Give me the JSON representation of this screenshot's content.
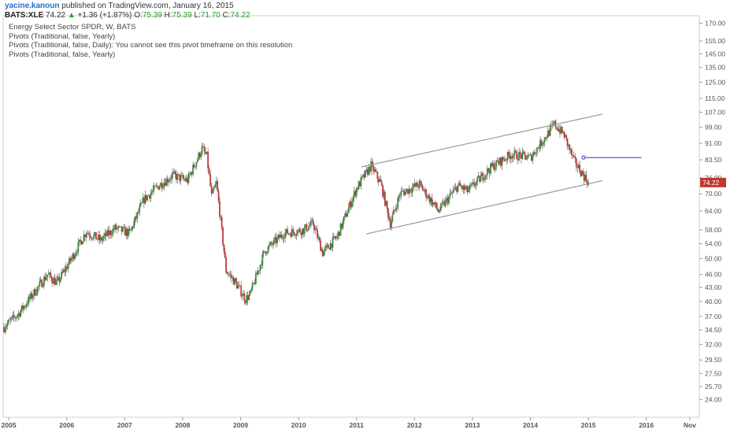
{
  "header": {
    "user": "yacine.kanoun",
    "published": "published on TradingView.com, January 16, 2015"
  },
  "ticker": {
    "symbol": "BATS:XLE",
    "last": "74.22",
    "arrow": "▲",
    "change": "+1.36 (+1.87%)",
    "o_label": "O:",
    "o_val": "75.39",
    "h_label": "H:",
    "h_val": "75.39",
    "l_label": "L:",
    "l_val": "71.70",
    "c_label": "C:",
    "c_val": "74.22"
  },
  "legend": [
    "Energy Select Sector SPDR, W, BATS",
    "Pivots (Traditional, false, Yearly)",
    "Pivots (Traditional, false, Daily): You cannot see this pivot timeframe on this resolution",
    "Pivots (Traditional, false, Yearly)"
  ],
  "colors": {
    "up": "#3d8b3d",
    "down": "#c23a3a",
    "channel": "#999999",
    "pivot": "#3333aa",
    "last_bg": "#c0392b"
  },
  "chart_data": {
    "type": "candlestick",
    "title": "Energy Select Sector SPDR, W, BATS",
    "y_scale": "log",
    "ylim": [
      23,
      171
    ],
    "y_ticks": [
      "170.00",
      "155.00",
      "145.00",
      "135.00",
      "125.00",
      "115.00",
      "107.00",
      "99.00",
      "91.00",
      "83.50",
      "76.00",
      "70.00",
      "64.00",
      "58.00",
      "54.00",
      "50.00",
      "46.00",
      "43.00",
      "40.00",
      "37.00",
      "34.50",
      "32.00",
      "29.50",
      "27.50",
      "25.70",
      "24.00"
    ],
    "x_ticks": [
      "2005",
      "2006",
      "2007",
      "2008",
      "2009",
      "2010",
      "2011",
      "2012",
      "2013",
      "2014",
      "2015",
      "2016",
      "Nov"
    ],
    "x_range": [
      "2004-12",
      "2016-11"
    ],
    "last_price_label": "74.22",
    "price_path": [
      [
        "2004-12",
        35.0
      ],
      [
        "2005-03",
        37.5
      ],
      [
        "2005-06",
        41.5
      ],
      [
        "2005-09",
        46.0
      ],
      [
        "2005-11",
        44.0
      ],
      [
        "2006-02",
        50.0
      ],
      [
        "2006-05",
        57.5
      ],
      [
        "2006-08",
        55.0
      ],
      [
        "2006-11",
        58.5
      ],
      [
        "2007-02",
        57.0
      ],
      [
        "2007-05",
        68.0
      ],
      [
        "2007-08",
        73.0
      ],
      [
        "2007-11",
        77.0
      ],
      [
        "2008-02",
        75.0
      ],
      [
        "2008-05",
        88.5
      ],
      [
        "2008-06",
        85.0
      ],
      [
        "2008-07",
        69.0
      ],
      [
        "2008-08",
        74.0
      ],
      [
        "2008-10",
        47.0
      ],
      [
        "2008-12",
        44.0
      ],
      [
        "2009-02",
        40.5
      ],
      [
        "2009-03",
        41.5
      ],
      [
        "2009-06",
        52.0
      ],
      [
        "2009-10",
        57.0
      ],
      [
        "2010-02",
        58.0
      ],
      [
        "2010-04",
        60.0
      ],
      [
        "2010-06",
        51.5
      ],
      [
        "2010-09",
        56.0
      ],
      [
        "2011-01",
        72.0
      ],
      [
        "2011-04",
        81.0
      ],
      [
        "2011-06",
        74.0
      ],
      [
        "2011-08",
        60.0
      ],
      [
        "2011-10",
        70.0
      ],
      [
        "2012-02",
        73.5
      ],
      [
        "2012-06",
        64.0
      ],
      [
        "2012-10",
        73.0
      ],
      [
        "2012-12",
        71.0
      ],
      [
        "2013-05",
        80.5
      ],
      [
        "2013-09",
        86.0
      ],
      [
        "2014-01",
        84.5
      ],
      [
        "2014-06",
        100.5
      ],
      [
        "2014-08",
        95.0
      ],
      [
        "2014-10",
        83.0
      ],
      [
        "2014-11",
        80.0
      ],
      [
        "2015-01",
        74.22
      ]
    ],
    "channel_upper": [
      [
        "2011-02",
        80.5
      ],
      [
        "2015-04",
        106.0
      ]
    ],
    "channel_lower": [
      [
        "2011-03",
        56.8
      ],
      [
        "2015-04",
        75.0
      ]
    ],
    "pivot_segment": [
      [
        "2014-12",
        84.5
      ],
      [
        "2015-12",
        84.5
      ]
    ]
  }
}
